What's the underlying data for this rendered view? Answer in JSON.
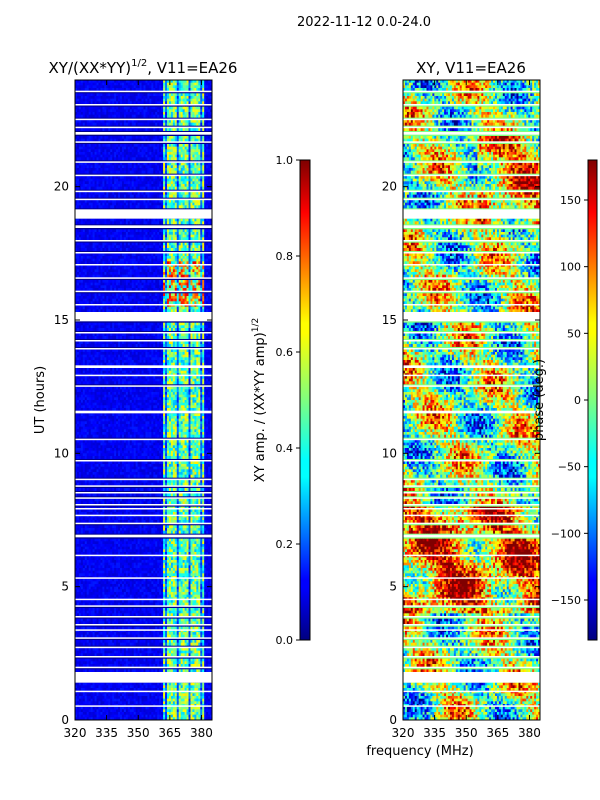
{
  "suptitle": "2022-11-12 0.0-24.0",
  "shared_xlabel": "frequency (MHz)",
  "chart_data": [
    {
      "type": "heatmap",
      "title": "XY/(XX*YY)",
      "title_exponent": "1/2",
      "title_suffix": ", V11=EA26",
      "xlabel": "",
      "ylabel": "UT (hours)",
      "xlim": [
        320,
        385
      ],
      "ylim": [
        0,
        24
      ],
      "xticks": [
        320,
        335,
        350,
        365,
        380
      ],
      "yticks": [
        0,
        5,
        10,
        15,
        20
      ],
      "signal_band_mhz": [
        362,
        381
      ],
      "colorbar": {
        "label": "XY amp. / (XX*YY amp)",
        "label_exponent": "1/2",
        "range": [
          0.0,
          1.0
        ],
        "ticks": [
          "0.0",
          "0.2",
          "0.4",
          "0.6",
          "0.8",
          "1.0"
        ],
        "colormap": "jet"
      }
    },
    {
      "type": "heatmap",
      "title": "XY, V11=EA26",
      "xlabel": "",
      "ylabel": "",
      "xlim": [
        320,
        385
      ],
      "ylim": [
        0,
        24
      ],
      "xticks": [
        320,
        335,
        350,
        365,
        380
      ],
      "yticks": [
        0,
        5,
        10,
        15,
        20
      ],
      "colorbar": {
        "label": "phase (deg.)",
        "range": [
          -180,
          180
        ],
        "ticks": [
          "-150",
          "-100",
          "-50",
          "0",
          "50",
          "100",
          "150"
        ],
        "colormap": "jet"
      }
    }
  ],
  "flagged_time_bands_hours": [
    [
      0.5,
      0.55
    ],
    [
      1.05,
      1.1
    ],
    [
      1.4,
      1.8
    ],
    [
      1.95,
      2.0
    ],
    [
      2.35,
      2.4
    ],
    [
      2.7,
      2.75
    ],
    [
      3.05,
      3.1
    ],
    [
      3.35,
      3.4
    ],
    [
      3.55,
      3.6
    ],
    [
      3.85,
      3.9
    ],
    [
      4.25,
      4.3
    ],
    [
      4.5,
      4.55
    ],
    [
      5.3,
      5.35
    ],
    [
      6.15,
      6.2
    ],
    [
      6.85,
      6.95
    ],
    [
      7.35,
      7.4
    ],
    [
      7.65,
      7.7
    ],
    [
      7.9,
      7.95
    ],
    [
      8.05,
      8.1
    ],
    [
      8.3,
      8.35
    ],
    [
      8.5,
      8.55
    ],
    [
      8.75,
      8.8
    ],
    [
      9.0,
      9.05
    ],
    [
      9.7,
      9.75
    ],
    [
      10.5,
      10.55
    ],
    [
      11.5,
      11.6
    ],
    [
      12.5,
      12.55
    ],
    [
      12.9,
      12.95
    ],
    [
      13.2,
      13.3
    ],
    [
      13.9,
      13.95
    ],
    [
      14.2,
      14.25
    ],
    [
      14.5,
      14.55
    ],
    [
      14.95,
      15.3
    ],
    [
      15.55,
      15.6
    ],
    [
      16.05,
      16.1
    ],
    [
      16.55,
      16.6
    ],
    [
      17.05,
      17.1
    ],
    [
      17.5,
      17.55
    ],
    [
      17.95,
      18.0
    ],
    [
      18.45,
      18.55
    ],
    [
      18.8,
      19.15
    ],
    [
      19.5,
      19.55
    ],
    [
      19.8,
      19.85
    ],
    [
      20.4,
      20.45
    ],
    [
      20.9,
      20.95
    ],
    [
      21.65,
      21.7
    ],
    [
      21.95,
      22.05
    ],
    [
      22.2,
      22.25
    ],
    [
      22.5,
      22.55
    ],
    [
      23.05,
      23.1
    ],
    [
      23.55,
      23.6
    ]
  ]
}
